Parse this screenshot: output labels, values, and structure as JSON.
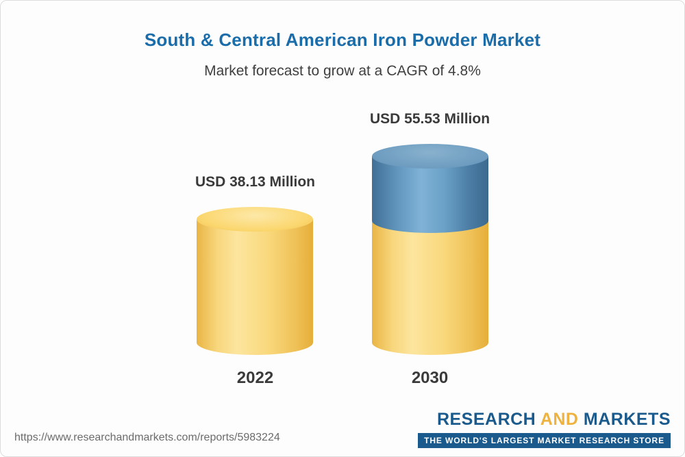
{
  "page": {
    "title": "South & Central American Iron Powder Market",
    "subtitle": "Market forecast to grow at a CAGR of 4.8%"
  },
  "chart_data": {
    "type": "bar",
    "bar_style": "3d-cylinder",
    "categories": [
      "2022",
      "2030"
    ],
    "values": [
      38.13,
      55.53
    ],
    "value_labels": [
      "USD 38.13 Million",
      "USD 55.53 Million"
    ],
    "unit": "USD Million",
    "title": "South & Central American Iron Powder Market",
    "subtitle": "Market forecast to grow at a CAGR of 4.8%",
    "xlabel": "",
    "ylabel": "",
    "ylim": [
      0,
      60
    ],
    "axes_visible": false,
    "grid": false,
    "legend": "none",
    "colors": {
      "base_segment": "#f6cd62",
      "growth_segment": "#5b8cb0",
      "title": "#1b6daa",
      "label_text": "#3a3a3a"
    },
    "notes": "2030 cylinder shows base value in yellow with blue top segment representing growth over 2022"
  },
  "footer": {
    "url": "https://www.researchandmarkets.com/reports/5983224",
    "logo": {
      "research": "RESEARCH",
      "and": "AND",
      "markets": "MARKETS",
      "tagline": "THE WORLD'S LARGEST MARKET RESEARCH STORE"
    }
  }
}
